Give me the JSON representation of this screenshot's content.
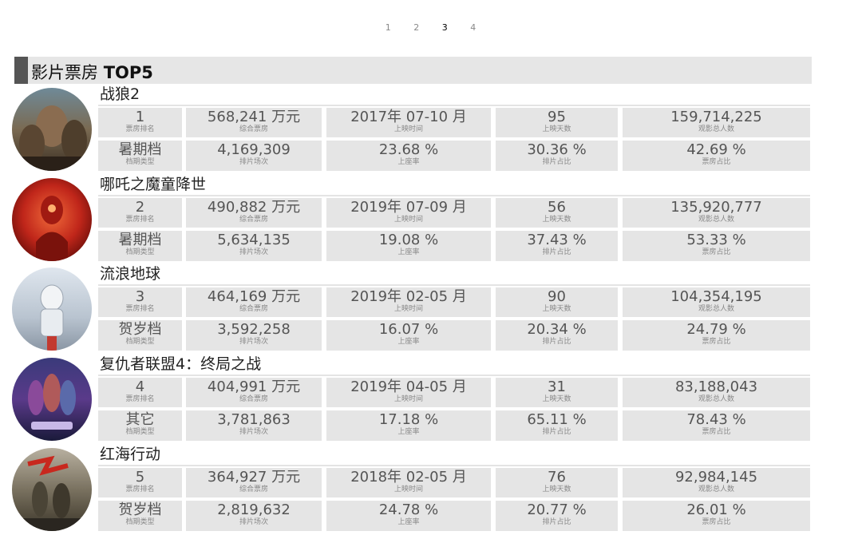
{
  "pager": [
    "1",
    "2",
    "3",
    "4"
  ],
  "header": {
    "title_cn": "影片票房",
    "title_en": "TOP5"
  },
  "labels": {
    "rank": "票房排名",
    "box": "综合票房",
    "period": "上映时间",
    "days": "上映天数",
    "audience": "观影总人数",
    "season": "档期类型",
    "screenings": "排片场次",
    "occupancy": "上座率",
    "screen_share": "排片占比",
    "box_share": "票房占比"
  },
  "movies": [
    {
      "title": "战狼2",
      "rank": "1",
      "box": "568,241 万元",
      "period": "2017年 07-10 月",
      "days": "95",
      "audience": "159,714,225",
      "season": "暑期档",
      "screenings": "4,169,309",
      "occupancy": "23.68 %",
      "screen_share": "30.36 %",
      "box_share": "42.69 %"
    },
    {
      "title": "哪吒之魔童降世",
      "rank": "2",
      "box": "490,882 万元",
      "period": "2019年 07-09 月",
      "days": "56",
      "audience": "135,920,777",
      "season": "暑期档",
      "screenings": "5,634,135",
      "occupancy": "19.08 %",
      "screen_share": "37.43 %",
      "box_share": "53.33 %"
    },
    {
      "title": "流浪地球",
      "rank": "3",
      "box": "464,169 万元",
      "period": "2019年 02-05 月",
      "days": "90",
      "audience": "104,354,195",
      "season": "贺岁档",
      "screenings": "3,592,258",
      "occupancy": "16.07 %",
      "screen_share": "20.34 %",
      "box_share": "24.79 %"
    },
    {
      "title": "复仇者联盟4：终局之战",
      "rank": "4",
      "box": "404,991 万元",
      "period": "2019年 04-05 月",
      "days": "31",
      "audience": "83,188,043",
      "season": "其它",
      "screenings": "3,781,863",
      "occupancy": "17.18 %",
      "screen_share": "65.11 %",
      "box_share": "78.43 %"
    },
    {
      "title": "红海行动",
      "rank": "5",
      "box": "364,927 万元",
      "period": "2018年 02-05 月",
      "days": "76",
      "audience": "92,984,145",
      "season": "贺岁档",
      "screenings": "2,819,632",
      "occupancy": "24.78 %",
      "screen_share": "20.77 %",
      "box_share": "26.01 %"
    }
  ],
  "colors": {
    "header_bar": "#555555",
    "header_bg": "#e6e6e6",
    "cell_bg": "#e5e5e5",
    "active_page": "#000000"
  }
}
